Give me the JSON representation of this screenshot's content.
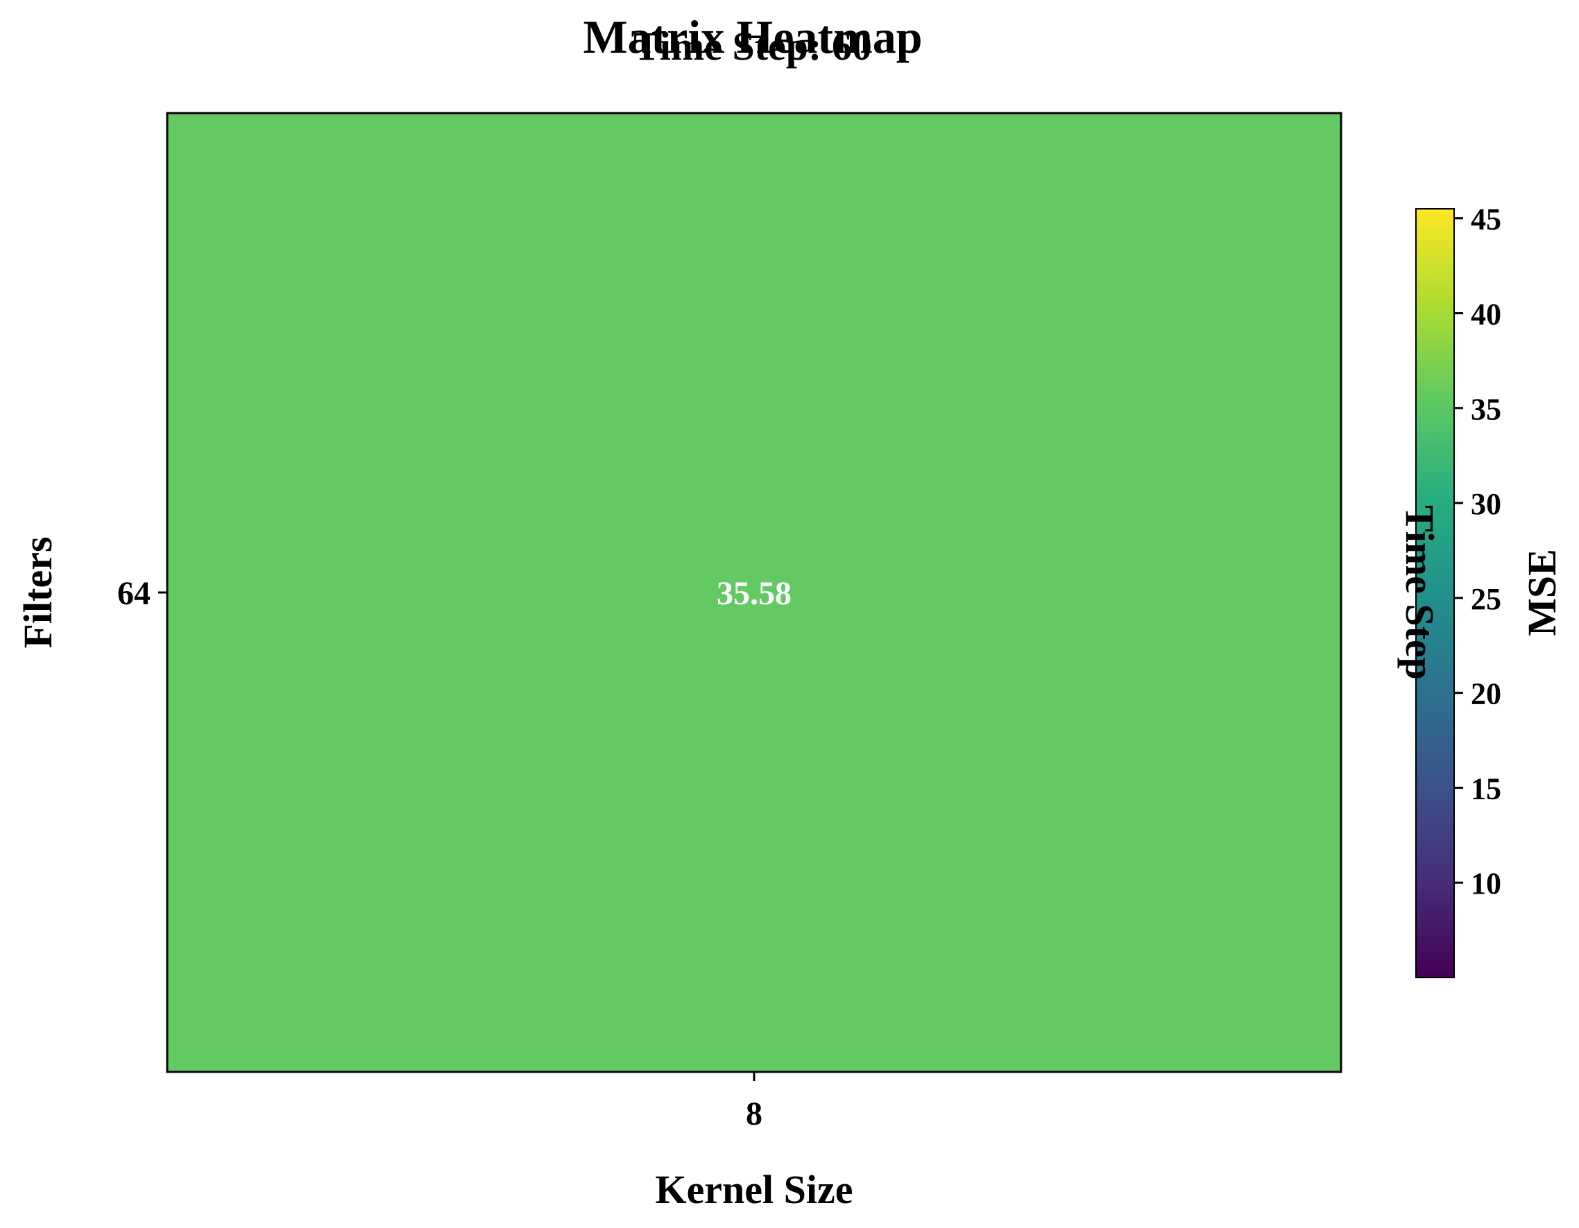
{
  "chart_data": {
    "type": "heatmap",
    "title": "Matrix Heatmap",
    "subtitle": "Time Step: 60",
    "xlabel": "Kernel Size",
    "ylabel": "Filters",
    "x_categories": [
      "8"
    ],
    "y_categories": [
      "64"
    ],
    "values": [
      [
        35.58
      ]
    ],
    "cell_labels": [
      [
        "35.58"
      ]
    ],
    "colormap": "viridis",
    "colorbar": {
      "label": "MSE",
      "range": [
        5,
        45.5
      ],
      "ticks": [
        "10",
        "15",
        "20",
        "25",
        "30",
        "35",
        "40",
        "45"
      ],
      "hidden_label": "Time Step"
    },
    "colors": {
      "cell": "#62c963",
      "cell_text": "#ffffff"
    }
  }
}
